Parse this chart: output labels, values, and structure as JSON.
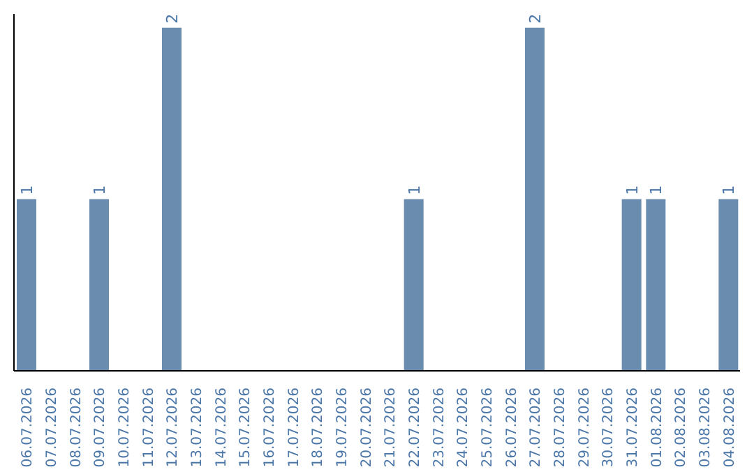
{
  "chart_data": {
    "type": "bar",
    "categories": [
      "06.07.2026",
      "07.07.2026",
      "08.07.2026",
      "09.07.2026",
      "10.07.2026",
      "11.07.2026",
      "12.07.2026",
      "13.07.2026",
      "14.07.2026",
      "15.07.2026",
      "16.07.2026",
      "17.07.2026",
      "18.07.2026",
      "19.07.2026",
      "20.07.2026",
      "21.07.2026",
      "22.07.2026",
      "23.07.2026",
      "24.07.2026",
      "25.07.2026",
      "26.07.2026",
      "27.07.2026",
      "28.07.2026",
      "29.07.2026",
      "30.07.2026",
      "31.07.2026",
      "01.08.2026",
      "02.08.2026",
      "03.08.2026",
      "04.08.2026"
    ],
    "values": [
      1,
      0,
      0,
      1,
      0,
      0,
      2,
      0,
      0,
      0,
      0,
      0,
      0,
      0,
      0,
      0,
      1,
      0,
      0,
      0,
      0,
      2,
      0,
      0,
      0,
      1,
      1,
      0,
      0,
      1
    ],
    "value_labels": [
      "1",
      null,
      null,
      "1",
      null,
      null,
      "2",
      null,
      null,
      null,
      null,
      null,
      null,
      null,
      null,
      null,
      "1",
      null,
      null,
      null,
      null,
      "2",
      null,
      null,
      null,
      "1",
      "1",
      null,
      null,
      "1"
    ],
    "color": "#6a8caf",
    "grid": false,
    "legend": false
  }
}
